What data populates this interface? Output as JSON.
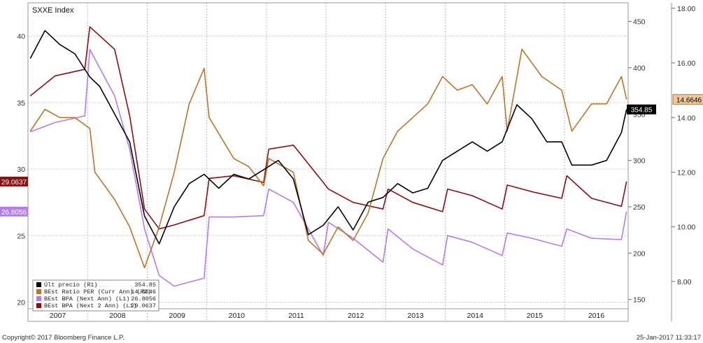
{
  "chart_data": {
    "type": "line",
    "title": "SXXE Index",
    "x_range": [
      "2007-01-01",
      "2017-01-25"
    ],
    "years": [
      "2007",
      "2008",
      "2009",
      "2010",
      "2011",
      "2012",
      "2013",
      "2014",
      "2015",
      "2016"
    ],
    "axes": {
      "L1": {
        "ticks": [
          "20",
          "25",
          "30",
          "35",
          "40"
        ],
        "range": [
          19.5,
          42.5
        ]
      },
      "R1": {
        "ticks": [
          "150",
          "200",
          "250",
          "300",
          "350",
          "400",
          "450"
        ],
        "range": [
          140,
          470
        ]
      },
      "R2": {
        "ticks": [
          "8.00",
          "10.00",
          "12.00",
          "14.00",
          "16.00",
          "18.00"
        ],
        "range": [
          7.0,
          18.2
        ]
      }
    },
    "grid": true,
    "series": [
      {
        "name": "Últ precio",
        "axis": "R1",
        "color": "#000000",
        "last_label": "354.85",
        "legend_value": "354.85",
        "legend_axis": "(R1)",
        "x": [
          "2007-01",
          "2007-04",
          "2007-07",
          "2007-10",
          "2008-01",
          "2008-03",
          "2008-06",
          "2008-09",
          "2008-12",
          "2009-03",
          "2009-06",
          "2009-09",
          "2009-12",
          "2010-03",
          "2010-06",
          "2010-09",
          "2010-12",
          "2011-03",
          "2011-06",
          "2011-09",
          "2011-12",
          "2012-03",
          "2012-06",
          "2012-09",
          "2012-12",
          "2013-03",
          "2013-06",
          "2013-09",
          "2013-12",
          "2014-03",
          "2014-06",
          "2014-09",
          "2014-12",
          "2015-03",
          "2015-06",
          "2015-09",
          "2015-12",
          "2016-02",
          "2016-06",
          "2016-09",
          "2016-12",
          "2017-01"
        ],
        "y": [
          410,
          440,
          425,
          415,
          390,
          380,
          350,
          320,
          240,
          210,
          250,
          275,
          285,
          270,
          285,
          280,
          290,
          300,
          280,
          220,
          230,
          250,
          225,
          255,
          260,
          275,
          265,
          270,
          300,
          310,
          320,
          310,
          320,
          360,
          345,
          320,
          320,
          295,
          295,
          300,
          330,
          355
        ]
      },
      {
        "name": "BEst Ratio PER (Curr Ann)",
        "axis": "R2",
        "color": "#b8762a",
        "last_label": "14.6646",
        "legend_value": "14.6646",
        "legend_axis": "(R2)",
        "x": [
          "2007-01",
          "2007-04",
          "2007-07",
          "2007-10",
          "2008-01",
          "2008-02",
          "2008-06",
          "2008-09",
          "2008-12",
          "2009-03",
          "2009-06",
          "2009-09",
          "2009-12",
          "2010-01",
          "2010-06",
          "2010-09",
          "2010-12",
          "2011-01",
          "2011-06",
          "2011-09",
          "2011-12",
          "2012-03",
          "2012-06",
          "2012-09",
          "2012-12",
          "2013-03",
          "2013-06",
          "2013-09",
          "2013-12",
          "2014-03",
          "2014-06",
          "2014-09",
          "2014-12",
          "2015-01",
          "2015-04",
          "2015-08",
          "2015-12",
          "2016-02",
          "2016-06",
          "2016-09",
          "2016-12",
          "2017-01"
        ],
        "y": [
          13.5,
          14.3,
          14.0,
          14.0,
          13.6,
          12.0,
          11.0,
          10.0,
          8.5,
          10.0,
          12.0,
          14.5,
          15.8,
          14.0,
          12.5,
          12.2,
          11.5,
          12.5,
          12.0,
          9.5,
          9.0,
          10.0,
          9.5,
          10.5,
          12.5,
          13.5,
          14.0,
          14.5,
          15.5,
          15.0,
          15.2,
          14.5,
          15.5,
          13.5,
          16.5,
          15.5,
          15.0,
          13.5,
          14.5,
          14.5,
          15.5,
          14.6646
        ]
      },
      {
        "name": "BEst BPA (Next Ann)",
        "axis": "L1",
        "color": "#b57cf0",
        "last_label": "26.8056",
        "legend_value": "26.8056",
        "legend_axis": "(L1)",
        "x": [
          "2007-01",
          "2007-06",
          "2007-12",
          "2008-01",
          "2008-06",
          "2008-09",
          "2008-12",
          "2009-03",
          "2009-06",
          "2009-12",
          "2010-01",
          "2010-06",
          "2010-12",
          "2011-01",
          "2011-06",
          "2011-12",
          "2012-01",
          "2012-06",
          "2012-12",
          "2013-01",
          "2013-06",
          "2013-12",
          "2014-01",
          "2014-06",
          "2014-12",
          "2015-01",
          "2015-06",
          "2015-12",
          "2016-01",
          "2016-06",
          "2016-12",
          "2017-01"
        ],
        "y": [
          32.8,
          33.5,
          34.0,
          39.0,
          35.5,
          31.5,
          25.5,
          22.0,
          21.2,
          21.8,
          26.4,
          26.4,
          26.5,
          28.5,
          27.5,
          23.5,
          26.0,
          24.8,
          23.0,
          25.5,
          24.0,
          22.8,
          25.0,
          24.5,
          23.5,
          25.2,
          24.8,
          24.2,
          25.5,
          24.8,
          24.7,
          26.8056
        ]
      },
      {
        "name": "BEst BPA (Next 2 Ann)",
        "axis": "L1",
        "color": "#8b0f0f",
        "last_label": "29.0637",
        "legend_value": "29.0637",
        "legend_axis": "(L1)",
        "x": [
          "2007-01",
          "2007-06",
          "2007-12",
          "2008-01",
          "2008-06",
          "2008-09",
          "2008-12",
          "2009-03",
          "2009-06",
          "2009-12",
          "2010-01",
          "2010-06",
          "2010-12",
          "2011-01",
          "2011-06",
          "2011-12",
          "2012-01",
          "2012-06",
          "2012-12",
          "2013-01",
          "2013-06",
          "2013-12",
          "2014-01",
          "2014-06",
          "2014-12",
          "2015-01",
          "2015-06",
          "2015-12",
          "2016-01",
          "2016-06",
          "2016-12",
          "2017-01"
        ],
        "y": [
          35.5,
          37.0,
          37.5,
          40.7,
          39.0,
          34.0,
          27.0,
          25.5,
          25.8,
          26.5,
          29.3,
          29.5,
          29.0,
          31.5,
          31.8,
          29.0,
          28.5,
          27.5,
          27.0,
          28.5,
          27.5,
          26.8,
          28.5,
          28.0,
          27.0,
          28.8,
          28.3,
          27.8,
          29.5,
          27.8,
          27.2,
          29.0637
        ]
      }
    ],
    "legend_position": "bottom-left",
    "legend_swatches": [
      "#000000",
      "#b8762a",
      "#b57cf0",
      "#8b0f0f"
    ]
  },
  "footer": {
    "copyright": "Copyright© 2017 Bloomberg Finance L.P.",
    "timestamp": "25-Jan-2017 11:33:17"
  }
}
